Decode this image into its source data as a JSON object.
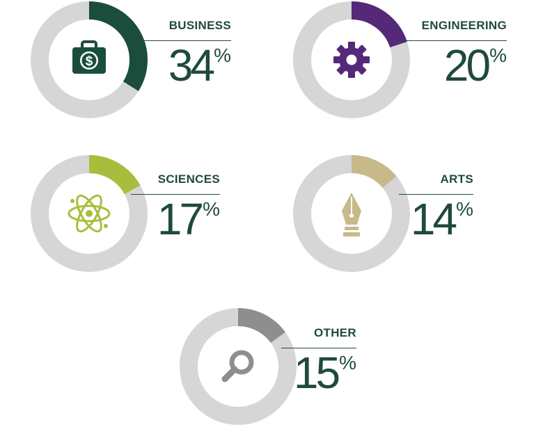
{
  "colors": {
    "track": "#d6d6d6",
    "text": "#1f4a3d",
    "business": "#1b4d3e",
    "engineering": "#55287a",
    "sciences": "#a9bd3c",
    "arts": "#c8b98a",
    "other": "#8e8e90"
  },
  "chart_data": {
    "type": "pie",
    "categories": [
      "BUSINESS",
      "ENGINEERING",
      "SCIENCES",
      "ARTS",
      "OTHER"
    ],
    "values": [
      34,
      20,
      17,
      14,
      15
    ],
    "unit": "%"
  },
  "items": [
    {
      "label": "BUSINESS",
      "value": "34",
      "percent_sign": "%",
      "fraction": 0.34,
      "icon": "money-briefcase-icon",
      "color_key": "business"
    },
    {
      "label": "ENGINEERING",
      "value": "20",
      "percent_sign": "%",
      "fraction": 0.2,
      "icon": "gear-icon",
      "color_key": "engineering"
    },
    {
      "label": "SCIENCES",
      "value": "17",
      "percent_sign": "%",
      "fraction": 0.17,
      "icon": "atom-icon",
      "color_key": "sciences"
    },
    {
      "label": "ARTS",
      "value": "14",
      "percent_sign": "%",
      "fraction": 0.14,
      "icon": "pen-nib-icon",
      "color_key": "arts"
    },
    {
      "label": "OTHER",
      "value": "15",
      "percent_sign": "%",
      "fraction": 0.15,
      "icon": "magnifier-icon",
      "color_key": "other"
    }
  ]
}
